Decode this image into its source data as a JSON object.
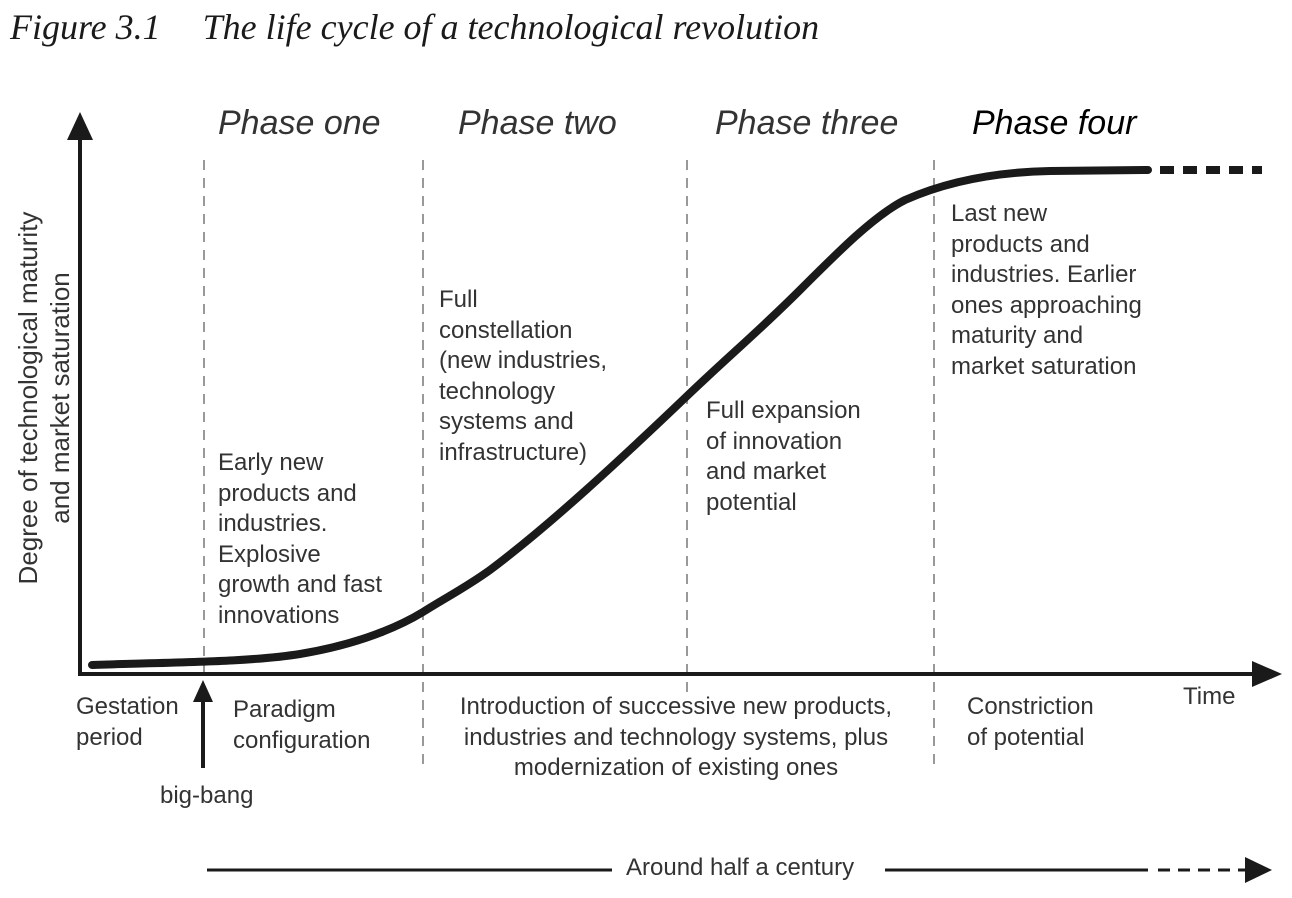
{
  "figure": {
    "number": "Figure 3.1",
    "title": "The life cycle of a technological revolution"
  },
  "y_axis_label": "Degree of technological maturity\nand market saturation",
  "x_axis_label": "Time",
  "phases": [
    "Phase one",
    "Phase two",
    "Phase three",
    "Phase four"
  ],
  "phase_descriptions": {
    "one": "Early new\nproducts and\nindustries.\nExplosive\ngrowth and fast\ninnovations",
    "two": "Full\nconstellation\n(new industries,\ntechnology\nsystems and\ninfrastructure)",
    "three": "Full expansion\nof innovation\nand market\npotential",
    "four": "Last new\nproducts and\nindustries. Earlier\nones approaching\nmaturity and\nmarket saturation"
  },
  "bottom_labels": {
    "gestation": "Gestation\nperiod",
    "paradigm": "Paradigm\nconfiguration",
    "introduction": "Introduction of successive new products,\nindustries and technology systems, plus\nmodernization of existing ones",
    "constriction": "Constriction\nof potential",
    "big_bang": "big-bang"
  },
  "duration_label": "Around half a century",
  "colors": {
    "curve": "#1a1a1a",
    "divider": "#999999",
    "text": "#333333"
  }
}
